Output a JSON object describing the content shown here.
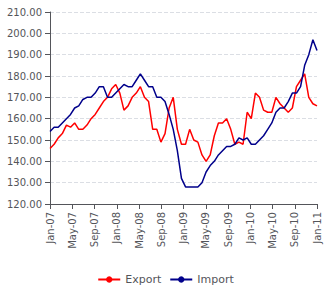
{
  "chart_data": {
    "type": "line",
    "x": [
      0,
      0.738462,
      1.476923,
      2.215385,
      2.953846,
      3.692308,
      4.430769,
      5.169231,
      5.907692,
      6.646154,
      7.384615,
      8.123077,
      8.861538,
      9.6,
      10.338462,
      11.076923,
      11.815385,
      12.553846,
      13.292308,
      14.030769,
      14.769231,
      15.507692,
      16.246154,
      16.984615,
      17.723077,
      18.461538,
      19.2,
      19.938462,
      20.676923,
      21.415385,
      22.153846,
      22.892308,
      23.630769,
      24.369231,
      25.107692,
      25.846154,
      26.584615,
      27.323077,
      28.061538,
      28.8,
      29.538462,
      30.276923,
      31.015385,
      31.753846,
      32.492308,
      33.230769,
      33.969231,
      34.707692,
      35.446154,
      36.184615,
      36.923077,
      37.661538,
      38.4,
      39.138462,
      39.876923,
      40.615385,
      41.353846,
      42.092308,
      42.830769,
      43.569231,
      44.307692,
      45.046154,
      45.784615,
      46.523077,
      47.261538,
      48
    ],
    "xlim": [
      0,
      48
    ],
    "xticks": [
      {
        "value": 0,
        "label": "Jan-07"
      },
      {
        "value": 4,
        "label": "May-07"
      },
      {
        "value": 8,
        "label": "Sep-07"
      },
      {
        "value": 12,
        "label": "Jan-08"
      },
      {
        "value": 16,
        "label": "May-08"
      },
      {
        "value": 20,
        "label": "Sep-08"
      },
      {
        "value": 24,
        "label": "Jan-09"
      },
      {
        "value": 28,
        "label": "May-09"
      },
      {
        "value": 32,
        "label": "Sep-09"
      },
      {
        "value": 36,
        "label": "Jan-10"
      },
      {
        "value": 40,
        "label": "May-10"
      },
      {
        "value": 44,
        "label": "Sep-10"
      },
      {
        "value": 48,
        "label": "Jan-11"
      }
    ],
    "ylim": [
      120,
      210
    ],
    "yticks": [
      {
        "value": 120,
        "label": "120.00"
      },
      {
        "value": 130,
        "label": "130.00"
      },
      {
        "value": 140,
        "label": "140.00"
      },
      {
        "value": 150,
        "label": "150.00"
      },
      {
        "value": 160,
        "label": "160.00"
      },
      {
        "value": 170,
        "label": "170.00"
      },
      {
        "value": 180,
        "label": "180.00"
      },
      {
        "value": 190,
        "label": "190.00"
      },
      {
        "value": 200,
        "label": "200.00"
      },
      {
        "value": 210,
        "label": "210.00"
      }
    ],
    "grid": true,
    "legend": "bottom",
    "series": [
      {
        "name": "Export",
        "color": "#FF0000",
        "values": [
          146,
          148,
          151,
          153,
          157,
          156,
          158,
          155,
          155,
          157,
          160,
          162,
          165,
          168,
          170,
          174,
          176,
          172,
          164,
          166,
          170,
          172,
          175,
          170,
          168,
          155,
          155,
          149,
          153,
          165,
          170,
          155,
          148,
          148,
          155,
          150,
          149,
          143,
          140,
          143,
          152,
          158,
          158,
          160,
          155,
          148,
          149,
          148,
          163,
          160,
          172,
          170,
          164,
          163,
          163,
          170,
          167,
          165,
          163,
          165,
          175,
          178,
          181,
          170,
          167,
          166
        ]
      },
      {
        "name": "Import",
        "color": "#00008B",
        "values": [
          154,
          156,
          156,
          158,
          160,
          162,
          165,
          166,
          169,
          170,
          170,
          172,
          175,
          175,
          170,
          170,
          172,
          174,
          176,
          175,
          175,
          178,
          181,
          178,
          175,
          175,
          170,
          170,
          168,
          162,
          155,
          145,
          132,
          128,
          128,
          128,
          128,
          130,
          135,
          138,
          140,
          143,
          145,
          147,
          147,
          148,
          151,
          150,
          151,
          148,
          148,
          150,
          152,
          155,
          158,
          163,
          165,
          165,
          168,
          172,
          172,
          175,
          185,
          190,
          197,
          192
        ]
      }
    ]
  }
}
